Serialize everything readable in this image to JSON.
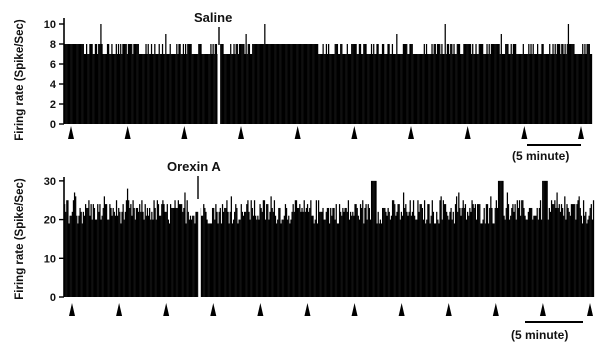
{
  "chart_data": [
    {
      "type": "bar",
      "panel": "top",
      "ylabel": "Firing rate (Spike/Sec)",
      "yticks": [
        0,
        2,
        4,
        6,
        8,
        10
      ],
      "ylim": [
        0,
        10.5
      ],
      "event_label": "Saline",
      "event_bin": 140,
      "gap_bin": 140,
      "scalebar_label": "(5 minute)",
      "bin_count": 480,
      "baseline_values": [
        7,
        8
      ],
      "spike_bins_10": [
        33,
        182,
        346,
        458
      ],
      "spike_bins_9": [
        92,
        165,
        302,
        397
      ],
      "markers": 10,
      "grid": false
    },
    {
      "type": "bar",
      "panel": "bottom",
      "ylabel": "Firing rate (Spike/Sec)",
      "yticks": [
        0,
        10,
        20,
        30
      ],
      "ylim": [
        0,
        31
      ],
      "event_label": "Orexin A",
      "event_bin": 122,
      "gap_bin": 122,
      "scalebar_label": "(5 minute)",
      "bin_count": 480,
      "mean_value": 22,
      "spread": 3,
      "peaks": [
        {
          "bin": 280,
          "value": 30
        },
        {
          "bin": 395,
          "value": 30
        },
        {
          "bin": 435,
          "value": 30
        }
      ],
      "markers": 12,
      "grid": false
    }
  ]
}
